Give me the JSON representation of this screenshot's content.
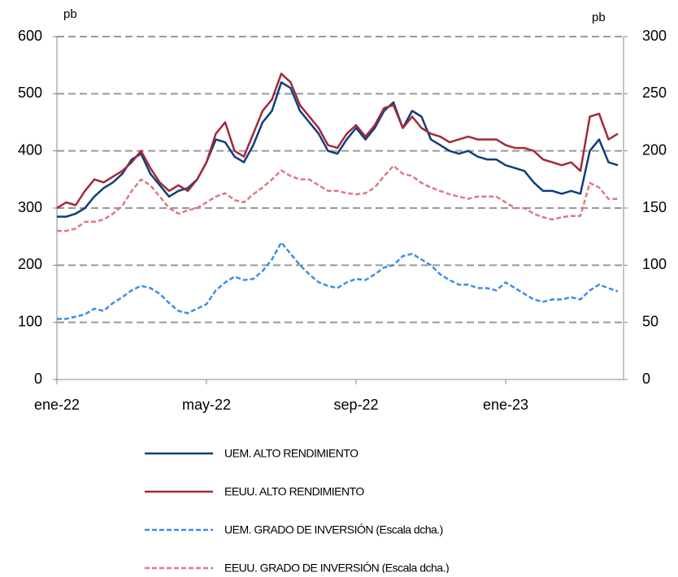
{
  "chart_data": {
    "type": "line",
    "ylabel": "pb",
    "y2label": "pb",
    "categories": [
      "ene-22",
      null,
      null,
      null,
      null,
      null,
      null,
      null,
      null,
      null,
      null,
      null,
      null,
      null,
      null,
      null,
      "may-22",
      null,
      null,
      null,
      null,
      null,
      null,
      null,
      null,
      null,
      null,
      null,
      null,
      null,
      null,
      null,
      "sep-22",
      null,
      null,
      null,
      null,
      null,
      null,
      null,
      null,
      null,
      null,
      null,
      null,
      null,
      null,
      null,
      "ene-23",
      null,
      null,
      null,
      null,
      null,
      null,
      null,
      null,
      null,
      null,
      null,
      null
    ],
    "ylim": [
      0,
      600
    ],
    "yticks": [
      0,
      100,
      200,
      300,
      400,
      500,
      600
    ],
    "y2lim": [
      0,
      300
    ],
    "y2ticks": [
      0,
      50,
      100,
      150,
      200,
      250,
      300
    ],
    "grid": true,
    "series": [
      {
        "name": "UEM. ALTO RENDIMIENTO",
        "color": "#0f3f7a",
        "dashed": false,
        "values": [
          285,
          285,
          290,
          300,
          320,
          335,
          345,
          360,
          385,
          395,
          360,
          340,
          320,
          330,
          335,
          350,
          380,
          420,
          415,
          390,
          380,
          410,
          450,
          470,
          520,
          510,
          470,
          450,
          430,
          400,
          395,
          420,
          440,
          420,
          440,
          470,
          485,
          440,
          470,
          460,
          420,
          410,
          400,
          395,
          400,
          390,
          385,
          385,
          375,
          370,
          365,
          345,
          330,
          330,
          325,
          330,
          325,
          400,
          420,
          380,
          375
        ]
      },
      {
        "name": "EEUU. ALTO RENDIMIENTO",
        "color": "#a3293a",
        "dashed": false,
        "values": [
          300,
          310,
          305,
          330,
          350,
          345,
          355,
          365,
          380,
          400,
          370,
          345,
          330,
          340,
          330,
          350,
          380,
          430,
          450,
          400,
          390,
          430,
          470,
          490,
          535,
          520,
          480,
          460,
          440,
          410,
          405,
          430,
          445,
          425,
          445,
          475,
          480,
          440,
          460,
          440,
          430,
          425,
          415,
          420,
          425,
          420,
          420,
          420,
          410,
          405,
          405,
          400,
          385,
          380,
          375,
          380,
          365,
          460,
          465,
          420,
          430
        ]
      },
      {
        "name": "UEM. GRADO DE INVERSIÓN (Escala dcha.)",
        "color": "#3d8fe6",
        "dashed": true,
        "axis": "y2",
        "values": [
          53,
          53,
          55,
          57,
          62,
          60,
          67,
          72,
          78,
          82,
          80,
          75,
          67,
          60,
          58,
          62,
          66,
          78,
          85,
          90,
          87,
          88,
          95,
          105,
          120,
          110,
          100,
          92,
          85,
          82,
          80,
          85,
          88,
          87,
          92,
          98,
          100,
          108,
          110,
          105,
          100,
          92,
          87,
          83,
          83,
          80,
          80,
          78,
          85,
          80,
          75,
          70,
          68,
          70,
          70,
          72,
          70,
          78,
          83,
          80,
          77
        ]
      },
      {
        "name": "EEUU. GRADO DE INVERSIÓN (Escala dcha.)",
        "color": "#de7a84",
        "dashed": true,
        "axis": "y2",
        "values": [
          130,
          130,
          132,
          138,
          138,
          140,
          145,
          152,
          165,
          175,
          170,
          160,
          150,
          145,
          148,
          150,
          155,
          160,
          163,
          157,
          155,
          162,
          168,
          175,
          183,
          178,
          175,
          175,
          170,
          165,
          165,
          163,
          162,
          163,
          168,
          178,
          187,
          180,
          178,
          172,
          168,
          165,
          162,
          160,
          158,
          160,
          160,
          160,
          155,
          150,
          150,
          145,
          142,
          140,
          142,
          143,
          143,
          172,
          168,
          158,
          158
        ]
      }
    ]
  }
}
